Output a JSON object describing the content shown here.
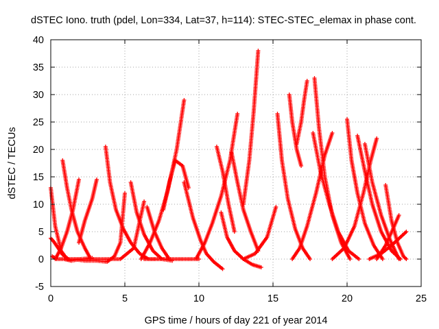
{
  "chart_data": {
    "type": "scatter",
    "title": "dSTEC Iono. truth (pdel, Lon=334, Lat=37, h=114): STEC-STEC_elemax in phase cont.",
    "xlabel": "GPS time / hours of day 221 of year 2014",
    "ylabel": "dSTEC  / TECUs",
    "xlim": [
      0,
      25
    ],
    "ylim": [
      -5,
      40
    ],
    "xticks": [
      0,
      5,
      10,
      15,
      20,
      25
    ],
    "yticks": [
      -5,
      0,
      5,
      10,
      15,
      20,
      25,
      30,
      35,
      40
    ],
    "grid": true,
    "marker": "+",
    "color": "#ff0000",
    "passes": [
      {
        "x": [
          0.0,
          0.3,
          0.7,
          1.1,
          1.6
        ],
        "y": [
          13,
          6,
          1.5,
          0,
          0
        ]
      },
      {
        "x": [
          0.0,
          0.2,
          0.5,
          0.8,
          1.2
        ],
        "y": [
          3.8,
          3.2,
          2.0,
          0.8,
          0
        ]
      },
      {
        "x": [
          0.1,
          0.4,
          0.9,
          1.4,
          2.0,
          2.8
        ],
        "y": [
          0.5,
          0,
          0,
          -0.3,
          0,
          0.2
        ]
      },
      {
        "x": [
          0.8,
          1.1,
          1.4,
          1.8,
          2.3,
          2.7
        ],
        "y": [
          18,
          13,
          9,
          5,
          2,
          0
        ]
      },
      {
        "x": [
          0.3,
          0.7,
          1.1,
          1.5,
          1.9
        ],
        "y": [
          0,
          2,
          5,
          9,
          14.5
        ]
      },
      {
        "x": [
          1.5,
          2.3,
          3.1,
          3.8,
          4.3,
          4.7,
          5.0
        ],
        "y": [
          0,
          -0.3,
          -0.3,
          -0.5,
          0.5,
          3,
          12
        ]
      },
      {
        "x": [
          1.9,
          2.3,
          2.8,
          3.1
        ],
        "y": [
          3,
          7,
          11,
          14.5
        ]
      },
      {
        "x": [
          3.7,
          4.0,
          4.4,
          4.9,
          5.4,
          6.0,
          6.6,
          7.2
        ],
        "y": [
          20.5,
          14,
          9,
          5.5,
          3,
          1,
          0,
          0
        ]
      },
      {
        "x": [
          1.7,
          2.7,
          3.7,
          4.7,
          5.6,
          6.3
        ],
        "y": [
          0,
          0,
          0,
          0,
          2.0,
          10.5
        ]
      },
      {
        "x": [
          5.4,
          5.8,
          6.3,
          6.9,
          7.5,
          8.2
        ],
        "y": [
          14,
          8.5,
          4.5,
          1.5,
          0,
          -0.3
        ]
      },
      {
        "x": [
          6.1,
          6.7,
          7.3,
          7.9,
          8.5,
          9.0
        ],
        "y": [
          0,
          3,
          7,
          12.5,
          20,
          29
        ]
      },
      {
        "x": [
          6.3,
          7.0,
          7.8,
          8.6,
          9.3,
          10.0
        ],
        "y": [
          0,
          0,
          0,
          0,
          0,
          0
        ]
      },
      {
        "x": [
          6.5,
          7.0,
          7.5,
          8.0
        ],
        "y": [
          9.5,
          5,
          2,
          0
        ]
      },
      {
        "x": [
          7.6,
          8.0,
          8.4,
          8.9,
          9.3
        ],
        "y": [
          9,
          14,
          18,
          17,
          13
        ]
      },
      {
        "x": [
          9.0,
          9.6,
          10.1,
          10.5,
          11.0,
          11.6
        ],
        "y": [
          14,
          7.5,
          3.5,
          1.0,
          -0.5,
          -1.8
        ]
      },
      {
        "x": [
          9.8,
          10.4,
          10.9,
          11.5,
          12.1,
          12.6
        ],
        "y": [
          0,
          3,
          6.5,
          11.5,
          18,
          26.5
        ]
      },
      {
        "x": [
          11.2,
          11.6,
          12.0,
          12.4
        ],
        "y": [
          20.5,
          16,
          10,
          5
        ]
      },
      {
        "x": [
          11.5,
          11.9,
          12.4,
          13.0,
          13.6,
          14.2
        ],
        "y": [
          8.5,
          4,
          1.5,
          0,
          -1,
          -1.5
        ]
      },
      {
        "x": [
          12.2,
          12.6,
          13.0,
          13.5,
          14.0
        ],
        "y": [
          19.5,
          14,
          9,
          5,
          1.5
        ]
      },
      {
        "x": [
          13.0,
          13.4,
          13.7,
          14.0
        ],
        "y": [
          10,
          18,
          27,
          38
        ]
      },
      {
        "x": [
          13.0,
          13.8,
          14.6,
          15.2
        ],
        "y": [
          0,
          1,
          4,
          9.5
        ]
      },
      {
        "x": [
          15.3,
          15.6,
          16.0,
          16.5,
          17.0,
          17.5
        ],
        "y": [
          26.5,
          18,
          11,
          5.5,
          2,
          0
        ]
      },
      {
        "x": [
          16.1,
          16.3,
          16.6,
          16.9
        ],
        "y": [
          30,
          25,
          20,
          17
        ]
      },
      {
        "x": [
          16.6,
          16.9,
          17.1,
          17.3
        ],
        "y": [
          21,
          25,
          29,
          32.5
        ]
      },
      {
        "x": [
          17.8,
          18.1,
          18.5,
          19.0,
          19.6,
          20.2
        ],
        "y": [
          33,
          24,
          15,
          8,
          3,
          0
        ]
      },
      {
        "x": [
          16.3,
          16.8,
          17.3,
          17.9,
          18.5,
          19.0
        ],
        "y": [
          0,
          2,
          6,
          12,
          19,
          23
        ]
      },
      {
        "x": [
          17.7,
          18.2,
          18.8,
          19.4,
          20.1,
          20.8
        ],
        "y": [
          23,
          16,
          10,
          5,
          1.5,
          0
        ]
      },
      {
        "x": [
          20.0,
          20.3,
          20.7,
          21.2,
          21.8,
          22.4
        ],
        "y": [
          25.5,
          18,
          12,
          6.5,
          2.5,
          0
        ]
      },
      {
        "x": [
          19.0,
          19.8,
          20.5,
          21.1,
          21.6,
          22.0
        ],
        "y": [
          0,
          2,
          6,
          12,
          18,
          22
        ]
      },
      {
        "x": [
          20.7,
          21.2,
          21.7,
          22.3,
          23.0,
          23.6
        ],
        "y": [
          22.5,
          16,
          10,
          5,
          1.5,
          0
        ]
      },
      {
        "x": [
          21.2,
          21.7,
          22.3,
          22.9,
          23.5
        ],
        "y": [
          21,
          14,
          8,
          3.5,
          0
        ]
      },
      {
        "x": [
          22.6,
          23.0,
          23.4,
          23.8,
          24.0
        ],
        "y": [
          13.5,
          7,
          3,
          0.5,
          0
        ]
      },
      {
        "x": [
          21.5,
          22.3,
          23.0,
          23.6,
          24.0
        ],
        "y": [
          0,
          1,
          2.5,
          4,
          5
        ]
      },
      {
        "x": [
          22.0,
          22.6,
          23.1,
          23.5
        ],
        "y": [
          0,
          2.5,
          5.5,
          8
        ]
      }
    ]
  }
}
